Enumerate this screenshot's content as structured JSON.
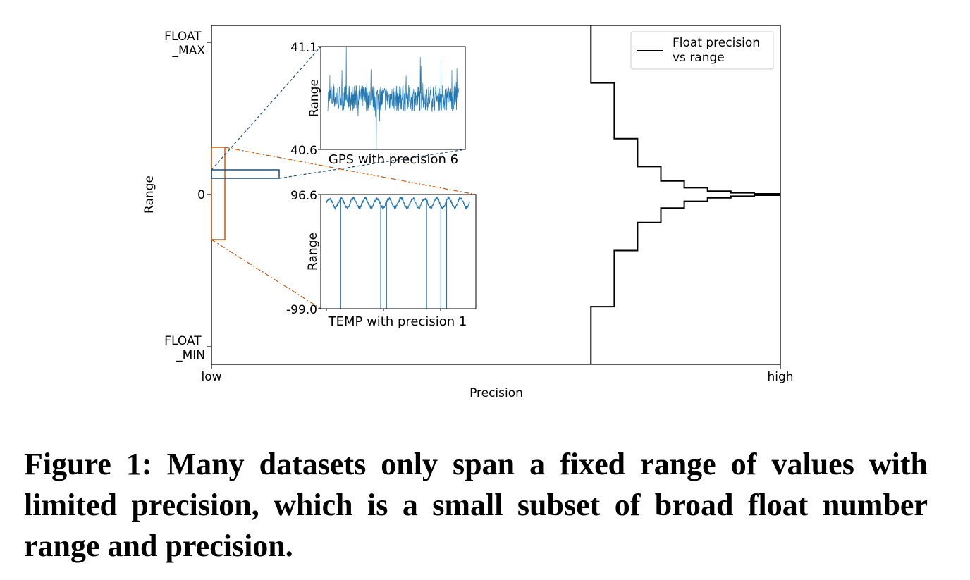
{
  "chart_data": {
    "type": "line",
    "xlabel": "Precision",
    "ylabel": "Range",
    "x_ticks": [
      "low",
      "high"
    ],
    "y_ticks": [
      "FLOAT\n_MAX",
      "0",
      "FLOAT\n_MIN"
    ],
    "legend": {
      "placement": "top-right",
      "label": "Float precision\n vs range"
    },
    "xlim": [
      0,
      1
    ],
    "ylim": [
      -1,
      1
    ],
    "series": [
      {
        "name": "Float precision\n vs range",
        "color": "#000000",
        "steps_upper": [
          {
            "x": 0.667,
            "y": 1.0
          },
          {
            "x": 0.667,
            "y": 0.66
          },
          {
            "x": 0.708,
            "y": 0.66
          },
          {
            "x": 0.708,
            "y": 0.33
          },
          {
            "x": 0.749,
            "y": 0.33
          },
          {
            "x": 0.749,
            "y": 0.165
          },
          {
            "x": 0.79,
            "y": 0.165
          },
          {
            "x": 0.79,
            "y": 0.08
          },
          {
            "x": 0.831,
            "y": 0.08
          },
          {
            "x": 0.831,
            "y": 0.04
          },
          {
            "x": 0.872,
            "y": 0.04
          },
          {
            "x": 0.872,
            "y": 0.02
          },
          {
            "x": 0.913,
            "y": 0.02
          },
          {
            "x": 0.913,
            "y": 0.01
          },
          {
            "x": 0.954,
            "y": 0.01
          },
          {
            "x": 0.954,
            "y": 0.004
          },
          {
            "x": 1.0,
            "y": 0.004
          }
        ],
        "steps_lower": [
          {
            "x": 0.667,
            "y": -1.0
          },
          {
            "x": 0.667,
            "y": -0.66
          },
          {
            "x": 0.708,
            "y": -0.66
          },
          {
            "x": 0.708,
            "y": -0.33
          },
          {
            "x": 0.749,
            "y": -0.33
          },
          {
            "x": 0.749,
            "y": -0.165
          },
          {
            "x": 0.79,
            "y": -0.165
          },
          {
            "x": 0.79,
            "y": -0.08
          },
          {
            "x": 0.831,
            "y": -0.08
          },
          {
            "x": 0.831,
            "y": -0.04
          },
          {
            "x": 0.872,
            "y": -0.04
          },
          {
            "x": 0.872,
            "y": -0.02
          },
          {
            "x": 0.913,
            "y": -0.02
          },
          {
            "x": 0.913,
            "y": -0.01
          },
          {
            "x": 0.954,
            "y": -0.01
          },
          {
            "x": 0.954,
            "y": -0.004
          },
          {
            "x": 1.0,
            "y": -0.004
          }
        ]
      }
    ],
    "highlight_boxes": [
      {
        "label": "GPS",
        "color": "#1f4e79",
        "x": [
          0.0,
          0.12
        ],
        "y": [
          0.1,
          0.15
        ]
      },
      {
        "label": "TEMP",
        "color": "#c55a11",
        "x": [
          0.0,
          0.023
        ],
        "y": [
          -0.27,
          0.28
        ]
      }
    ],
    "insets": [
      {
        "title": "GPS with precision 6",
        "ylabel": "Range",
        "y_ticks": [
          "41.1",
          "40.6"
        ],
        "ylim": [
          40.6,
          41.1
        ],
        "color": "#1f77b4",
        "description_series": "dense noisy series centred near 40.85",
        "baseline": 40.85,
        "spikes": [
          {
            "pos": 0.14,
            "value": 41.1
          },
          {
            "pos": 0.37,
            "value": 40.6
          }
        ]
      },
      {
        "title": "TEMP with precision 1",
        "ylabel": "Range",
        "y_ticks": [
          "96.6",
          "-99.0"
        ],
        "ylim": [
          -99.0,
          96.6
        ],
        "color": "#1f77b4",
        "periods": 12,
        "baseline": 82.0,
        "amplitude": 8.0,
        "drops": [
          {
            "pos": 0.1,
            "value": -99.0
          },
          {
            "pos": 0.38,
            "value": -99.0
          },
          {
            "pos": 0.42,
            "value": -99.0
          },
          {
            "pos": 0.7,
            "value": -99.0
          },
          {
            "pos": 0.8,
            "value": -99.0
          },
          {
            "pos": 0.84,
            "value": -99.0
          }
        ]
      }
    ]
  },
  "caption": "Figure 1: Many datasets only span a fixed range of values with limited precision, which is a small subset of broad float number range and precision."
}
